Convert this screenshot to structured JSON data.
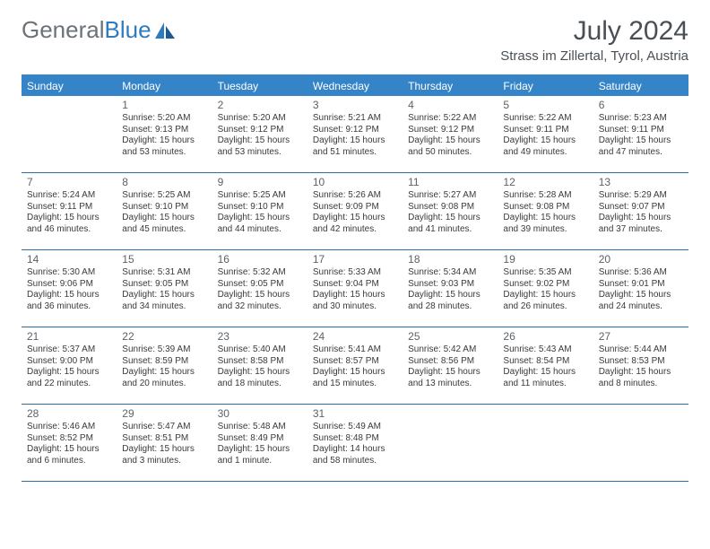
{
  "logo": {
    "text1": "General",
    "text2": "Blue"
  },
  "title": "July 2024",
  "subtitle": "Strass im Zillertal, Tyrol, Austria",
  "colors": {
    "header_bg": "#3584c7",
    "header_text": "#ffffff",
    "border": "#2e6ca3",
    "logo_gray": "#6b7278",
    "logo_blue": "#2f7bbf",
    "title_color": "#494f55"
  },
  "weekdays": [
    "Sunday",
    "Monday",
    "Tuesday",
    "Wednesday",
    "Thursday",
    "Friday",
    "Saturday"
  ],
  "weeks": [
    [
      {
        "empty": true
      },
      {
        "day": "1",
        "sunrise": "Sunrise: 5:20 AM",
        "sunset": "Sunset: 9:13 PM",
        "day1": "Daylight: 15 hours",
        "day2": "and 53 minutes."
      },
      {
        "day": "2",
        "sunrise": "Sunrise: 5:20 AM",
        "sunset": "Sunset: 9:12 PM",
        "day1": "Daylight: 15 hours",
        "day2": "and 53 minutes."
      },
      {
        "day": "3",
        "sunrise": "Sunrise: 5:21 AM",
        "sunset": "Sunset: 9:12 PM",
        "day1": "Daylight: 15 hours",
        "day2": "and 51 minutes."
      },
      {
        "day": "4",
        "sunrise": "Sunrise: 5:22 AM",
        "sunset": "Sunset: 9:12 PM",
        "day1": "Daylight: 15 hours",
        "day2": "and 50 minutes."
      },
      {
        "day": "5",
        "sunrise": "Sunrise: 5:22 AM",
        "sunset": "Sunset: 9:11 PM",
        "day1": "Daylight: 15 hours",
        "day2": "and 49 minutes."
      },
      {
        "day": "6",
        "sunrise": "Sunrise: 5:23 AM",
        "sunset": "Sunset: 9:11 PM",
        "day1": "Daylight: 15 hours",
        "day2": "and 47 minutes."
      }
    ],
    [
      {
        "day": "7",
        "sunrise": "Sunrise: 5:24 AM",
        "sunset": "Sunset: 9:11 PM",
        "day1": "Daylight: 15 hours",
        "day2": "and 46 minutes."
      },
      {
        "day": "8",
        "sunrise": "Sunrise: 5:25 AM",
        "sunset": "Sunset: 9:10 PM",
        "day1": "Daylight: 15 hours",
        "day2": "and 45 minutes."
      },
      {
        "day": "9",
        "sunrise": "Sunrise: 5:25 AM",
        "sunset": "Sunset: 9:10 PM",
        "day1": "Daylight: 15 hours",
        "day2": "and 44 minutes."
      },
      {
        "day": "10",
        "sunrise": "Sunrise: 5:26 AM",
        "sunset": "Sunset: 9:09 PM",
        "day1": "Daylight: 15 hours",
        "day2": "and 42 minutes."
      },
      {
        "day": "11",
        "sunrise": "Sunrise: 5:27 AM",
        "sunset": "Sunset: 9:08 PM",
        "day1": "Daylight: 15 hours",
        "day2": "and 41 minutes."
      },
      {
        "day": "12",
        "sunrise": "Sunrise: 5:28 AM",
        "sunset": "Sunset: 9:08 PM",
        "day1": "Daylight: 15 hours",
        "day2": "and 39 minutes."
      },
      {
        "day": "13",
        "sunrise": "Sunrise: 5:29 AM",
        "sunset": "Sunset: 9:07 PM",
        "day1": "Daylight: 15 hours",
        "day2": "and 37 minutes."
      }
    ],
    [
      {
        "day": "14",
        "sunrise": "Sunrise: 5:30 AM",
        "sunset": "Sunset: 9:06 PM",
        "day1": "Daylight: 15 hours",
        "day2": "and 36 minutes."
      },
      {
        "day": "15",
        "sunrise": "Sunrise: 5:31 AM",
        "sunset": "Sunset: 9:05 PM",
        "day1": "Daylight: 15 hours",
        "day2": "and 34 minutes."
      },
      {
        "day": "16",
        "sunrise": "Sunrise: 5:32 AM",
        "sunset": "Sunset: 9:05 PM",
        "day1": "Daylight: 15 hours",
        "day2": "and 32 minutes."
      },
      {
        "day": "17",
        "sunrise": "Sunrise: 5:33 AM",
        "sunset": "Sunset: 9:04 PM",
        "day1": "Daylight: 15 hours",
        "day2": "and 30 minutes."
      },
      {
        "day": "18",
        "sunrise": "Sunrise: 5:34 AM",
        "sunset": "Sunset: 9:03 PM",
        "day1": "Daylight: 15 hours",
        "day2": "and 28 minutes."
      },
      {
        "day": "19",
        "sunrise": "Sunrise: 5:35 AM",
        "sunset": "Sunset: 9:02 PM",
        "day1": "Daylight: 15 hours",
        "day2": "and 26 minutes."
      },
      {
        "day": "20",
        "sunrise": "Sunrise: 5:36 AM",
        "sunset": "Sunset: 9:01 PM",
        "day1": "Daylight: 15 hours",
        "day2": "and 24 minutes."
      }
    ],
    [
      {
        "day": "21",
        "sunrise": "Sunrise: 5:37 AM",
        "sunset": "Sunset: 9:00 PM",
        "day1": "Daylight: 15 hours",
        "day2": "and 22 minutes."
      },
      {
        "day": "22",
        "sunrise": "Sunrise: 5:39 AM",
        "sunset": "Sunset: 8:59 PM",
        "day1": "Daylight: 15 hours",
        "day2": "and 20 minutes."
      },
      {
        "day": "23",
        "sunrise": "Sunrise: 5:40 AM",
        "sunset": "Sunset: 8:58 PM",
        "day1": "Daylight: 15 hours",
        "day2": "and 18 minutes."
      },
      {
        "day": "24",
        "sunrise": "Sunrise: 5:41 AM",
        "sunset": "Sunset: 8:57 PM",
        "day1": "Daylight: 15 hours",
        "day2": "and 15 minutes."
      },
      {
        "day": "25",
        "sunrise": "Sunrise: 5:42 AM",
        "sunset": "Sunset: 8:56 PM",
        "day1": "Daylight: 15 hours",
        "day2": "and 13 minutes."
      },
      {
        "day": "26",
        "sunrise": "Sunrise: 5:43 AM",
        "sunset": "Sunset: 8:54 PM",
        "day1": "Daylight: 15 hours",
        "day2": "and 11 minutes."
      },
      {
        "day": "27",
        "sunrise": "Sunrise: 5:44 AM",
        "sunset": "Sunset: 8:53 PM",
        "day1": "Daylight: 15 hours",
        "day2": "and 8 minutes."
      }
    ],
    [
      {
        "day": "28",
        "sunrise": "Sunrise: 5:46 AM",
        "sunset": "Sunset: 8:52 PM",
        "day1": "Daylight: 15 hours",
        "day2": "and 6 minutes."
      },
      {
        "day": "29",
        "sunrise": "Sunrise: 5:47 AM",
        "sunset": "Sunset: 8:51 PM",
        "day1": "Daylight: 15 hours",
        "day2": "and 3 minutes."
      },
      {
        "day": "30",
        "sunrise": "Sunrise: 5:48 AM",
        "sunset": "Sunset: 8:49 PM",
        "day1": "Daylight: 15 hours",
        "day2": "and 1 minute."
      },
      {
        "day": "31",
        "sunrise": "Sunrise: 5:49 AM",
        "sunset": "Sunset: 8:48 PM",
        "day1": "Daylight: 14 hours",
        "day2": "and 58 minutes."
      },
      {
        "empty": true
      },
      {
        "empty": true
      },
      {
        "empty": true
      }
    ]
  ]
}
